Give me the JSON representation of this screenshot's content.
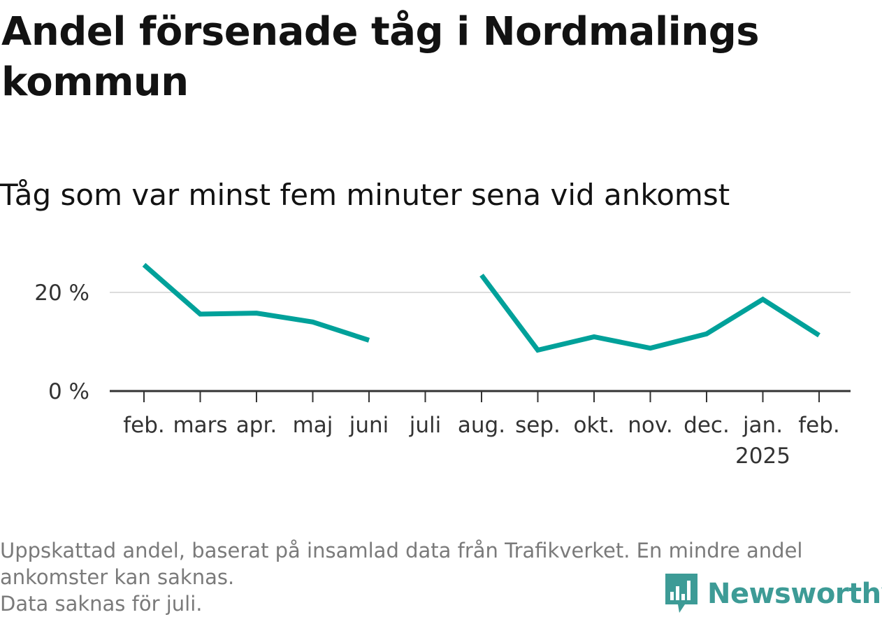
{
  "title": "Andel försenade tåg i Nordmalings kommun",
  "subtitle": "Tåg som var minst fem minuter sena vid ankomst",
  "caption": {
    "line1": "Uppskattad andel, baserat på insamlad data från Trafikverket. En mindre andel",
    "line2": "ankomster kan saknas.",
    "line3": "Data saknas för juli."
  },
  "logo": {
    "text": "Newsworthy",
    "icon": "bar-chart-speech-icon",
    "color": "#3d9b96"
  },
  "colors": {
    "line": "#00a19a",
    "grid": "#dddddd",
    "axis": "#333333"
  },
  "chart_data": {
    "type": "line",
    "title": "Andel försenade tåg i Nordmalings kommun",
    "subtitle": "Tåg som var minst fem minuter sena vid ankomst",
    "categories": [
      "feb.",
      "mars",
      "apr.",
      "maj",
      "juni",
      "juli",
      "aug.",
      "sep.",
      "okt.",
      "nov.",
      "dec.",
      "jan.",
      "feb."
    ],
    "category_sublabels": [
      "",
      "",
      "",
      "",
      "",
      "",
      "",
      "",
      "",
      "",
      "",
      "2025",
      ""
    ],
    "series": [
      {
        "values": [
          25.6,
          15.6,
          15.8,
          14.0,
          10.3,
          null,
          23.5,
          8.3,
          11.0,
          8.7,
          11.6,
          18.6,
          11.3
        ]
      }
    ],
    "yticks": [
      0,
      20
    ],
    "ytick_labels": [
      "0 %",
      "20 %"
    ],
    "ylim": [
      0,
      27
    ],
    "grid": true,
    "legend": "none"
  }
}
